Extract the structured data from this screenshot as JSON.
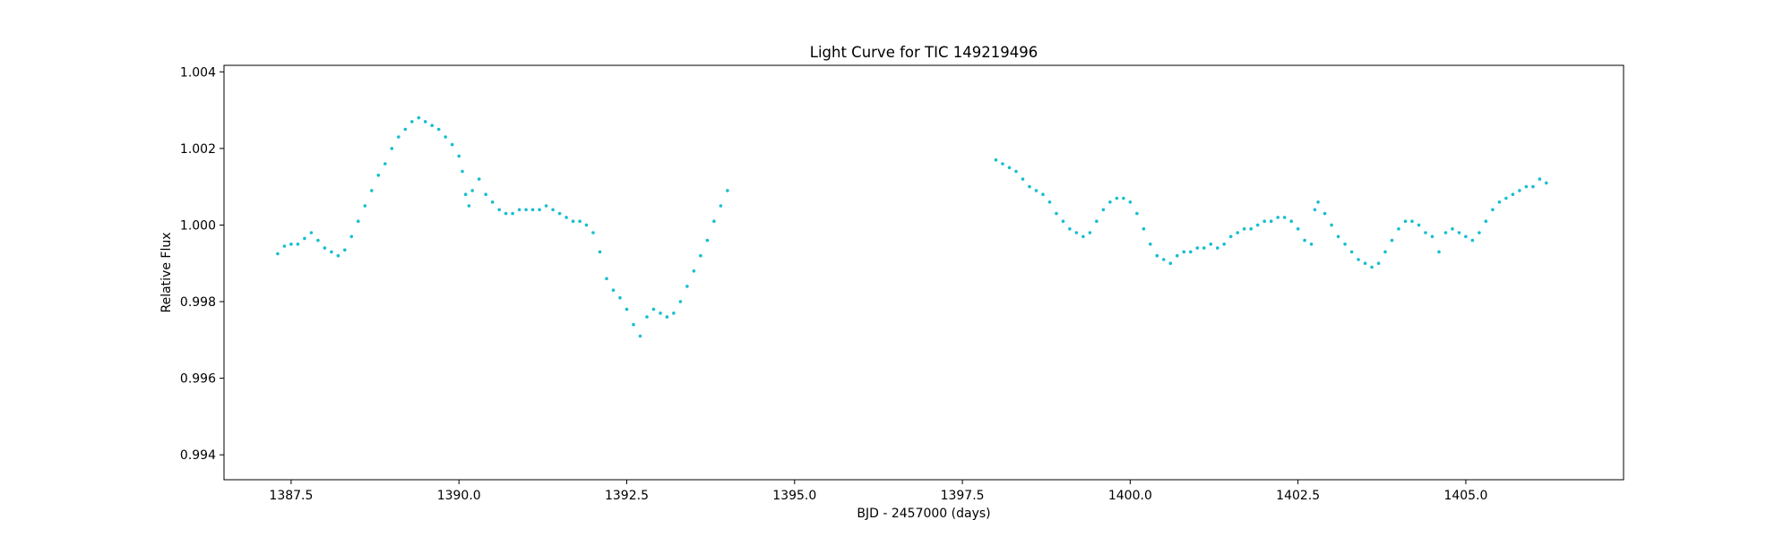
{
  "chart_data": {
    "type": "scatter",
    "title": "Light Curve for TIC 149219496",
    "xlabel": "BJD - 2457000 (days)",
    "ylabel": "Relative Flux",
    "xlim": [
      1386.5,
      1407.35
    ],
    "ylim": [
      0.99335,
      1.00417
    ],
    "xticks": [
      1387.5,
      1390.0,
      1392.5,
      1395.0,
      1397.5,
      1400.0,
      1402.5,
      1405.0
    ],
    "xtick_labels": [
      "1387.5",
      "1390.0",
      "1392.5",
      "1395.0",
      "1397.5",
      "1400.0",
      "1402.5",
      "1405.0"
    ],
    "yticks": [
      0.994,
      0.996,
      0.998,
      1.0,
      1.002,
      1.004
    ],
    "ytick_labels": [
      "0.994",
      "0.996",
      "0.998",
      "1.000",
      "1.002",
      "1.004"
    ],
    "grid": false,
    "marker_color": "#17becf",
    "series": [
      {
        "x": [
          1387.3,
          1387.4,
          1387.5,
          1387.6,
          1387.7,
          1387.8,
          1387.9,
          1388.0,
          1388.1,
          1388.2,
          1388.3,
          1388.4,
          1388.5,
          1388.6,
          1388.7,
          1388.8,
          1388.9,
          1389.0,
          1389.1,
          1389.2,
          1389.3,
          1389.4,
          1389.5,
          1389.6,
          1389.7,
          1389.8,
          1389.9,
          1390.0,
          1390.05,
          1390.1,
          1390.15,
          1390.2,
          1390.3,
          1390.4,
          1390.5,
          1390.6,
          1390.7,
          1390.8,
          1390.9,
          1391.0,
          1391.1,
          1391.2,
          1391.3,
          1391.4,
          1391.5,
          1391.6,
          1391.7,
          1391.8,
          1391.9,
          1392.0,
          1392.1,
          1392.2,
          1392.3,
          1392.4,
          1392.5,
          1392.6,
          1392.7,
          1392.8,
          1392.9,
          1393.0,
          1393.1,
          1393.2,
          1393.3,
          1393.4,
          1393.5,
          1393.6,
          1393.7,
          1393.8,
          1393.9,
          1394.0
        ],
        "y": [
          0.99925,
          0.99945,
          0.9995,
          0.9995,
          0.99965,
          0.9998,
          0.9996,
          0.9994,
          0.9993,
          0.9992,
          0.99935,
          0.9997,
          1.0001,
          1.0005,
          1.0009,
          1.0013,
          1.0016,
          1.002,
          1.0023,
          1.0025,
          1.0027,
          1.0028,
          1.0027,
          1.0026,
          1.0025,
          1.0023,
          1.0021,
          1.0018,
          1.0014,
          1.0008,
          1.0005,
          1.0009,
          1.0012,
          1.0008,
          1.0006,
          1.0004,
          1.0003,
          1.0003,
          1.0004,
          1.0004,
          1.0004,
          1.0004,
          1.0005,
          1.0004,
          1.0003,
          1.0002,
          1.0001,
          1.0001,
          1.0,
          0.9998,
          0.9993,
          0.9986,
          0.9983,
          0.9981,
          0.9978,
          0.9974,
          0.9971,
          0.9976,
          0.9978,
          0.9977,
          0.9976,
          0.9977,
          0.998,
          0.9984,
          0.9988,
          0.9992,
          0.9996,
          1.0001,
          1.0005,
          1.0009
        ]
      },
      {
        "x": [
          1398.0,
          1398.1,
          1398.2,
          1398.3,
          1398.4,
          1398.5,
          1398.6,
          1398.7,
          1398.8,
          1398.9,
          1399.0,
          1399.1,
          1399.2,
          1399.3,
          1399.4,
          1399.5,
          1399.6,
          1399.7,
          1399.8,
          1399.9,
          1400.0,
          1400.1,
          1400.2,
          1400.3,
          1400.4,
          1400.5,
          1400.6,
          1400.7,
          1400.8,
          1400.9,
          1401.0,
          1401.1,
          1401.2,
          1401.3,
          1401.4,
          1401.5,
          1401.6,
          1401.7,
          1401.8,
          1401.9,
          1402.0,
          1402.1,
          1402.2,
          1402.3,
          1402.4,
          1402.5,
          1402.6,
          1402.7,
          1402.75,
          1402.8,
          1402.9,
          1403.0,
          1403.1,
          1403.2,
          1403.3,
          1403.4,
          1403.5,
          1403.6,
          1403.7,
          1403.8,
          1403.9,
          1404.0,
          1404.1,
          1404.2,
          1404.3,
          1404.4,
          1404.5,
          1404.6,
          1404.7,
          1404.8,
          1404.9,
          1405.0,
          1405.1,
          1405.2,
          1405.3,
          1405.4,
          1405.5,
          1405.6,
          1405.7,
          1405.8,
          1405.9,
          1406.0,
          1406.1,
          1406.2
        ],
        "y": [
          1.0017,
          1.0016,
          1.0015,
          1.0014,
          1.0012,
          1.001,
          1.0009,
          1.0008,
          1.0006,
          1.0003,
          1.0001,
          0.9999,
          0.9998,
          0.9997,
          0.9998,
          1.0001,
          1.0004,
          1.0006,
          1.0007,
          1.0007,
          1.0006,
          1.0003,
          0.9999,
          0.9995,
          0.9992,
          0.9991,
          0.999,
          0.9992,
          0.9993,
          0.9993,
          0.9994,
          0.9994,
          0.9995,
          0.9994,
          0.9995,
          0.9997,
          0.9998,
          0.9999,
          0.9999,
          1.0,
          1.0001,
          1.0001,
          1.0002,
          1.0002,
          1.0001,
          0.9999,
          0.9996,
          0.9995,
          1.0004,
          1.0006,
          1.0003,
          1.0,
          0.9997,
          0.9995,
          0.9993,
          0.9991,
          0.999,
          0.9989,
          0.999,
          0.9993,
          0.9996,
          0.9999,
          1.0001,
          1.0001,
          1.0,
          0.9998,
          0.9997,
          0.9993,
          0.9998,
          0.9999,
          0.9998,
          0.9997,
          0.9996,
          0.9998,
          1.0001,
          1.0004,
          1.0006,
          1.0007,
          1.0008,
          1.0009,
          1.001,
          1.001,
          1.0012,
          1.0011
        ]
      }
    ]
  }
}
